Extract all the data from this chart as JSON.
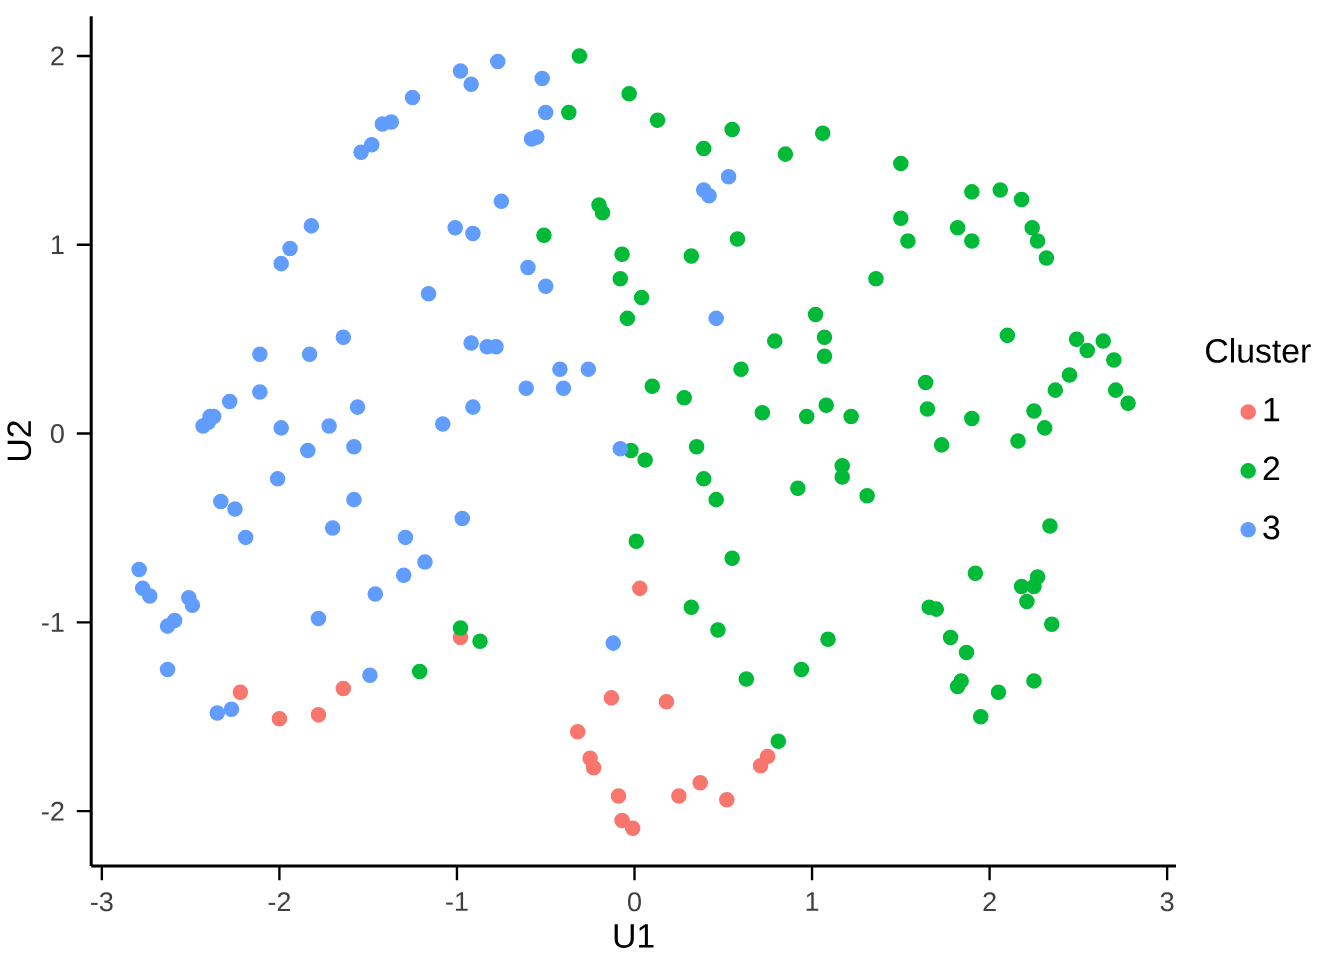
{
  "chart_data": {
    "type": "scatter",
    "xlabel": "U1",
    "ylabel": "U2",
    "legend_title": "Cluster",
    "legend": "right",
    "grid": false,
    "marker": "circle",
    "xlim": [
      -3.06,
      3.05
    ],
    "ylim": [
      -2.29,
      2.21
    ],
    "xticks": [
      -3,
      -2,
      -1,
      0,
      1,
      2,
      3
    ],
    "yticks": [
      -2,
      -1,
      0,
      1,
      2
    ],
    "series": [
      {
        "name": "1",
        "color": "#f8766d",
        "x": [
          0.03,
          -0.98,
          -2.22,
          -2.0,
          -1.78,
          -1.64,
          -0.13,
          0.18,
          -0.32,
          -0.25,
          -0.23,
          -0.09,
          -0.07,
          -0.01,
          0.25,
          0.37,
          0.52,
          0.71,
          0.75
        ],
        "values": [
          -0.82,
          -1.08,
          -1.37,
          -1.51,
          -1.49,
          -1.35,
          -1.4,
          -1.42,
          -1.58,
          -1.72,
          -1.77,
          -1.92,
          -2.05,
          -2.09,
          -1.92,
          -1.85,
          -1.94,
          -1.76,
          -1.71
        ]
      },
      {
        "name": "2",
        "color": "#00ba38",
        "x": [
          -0.31,
          -0.37,
          -0.03,
          0.13,
          0.39,
          0.55,
          0.85,
          1.06,
          1.5,
          -0.2,
          -0.18,
          -0.51,
          -0.07,
          0.32,
          0.58,
          -0.08,
          0.04,
          -0.04,
          1.5,
          1.54,
          1.9,
          2.06,
          1.82,
          1.9,
          2.18,
          2.24,
          2.27,
          2.32,
          1.36,
          1.02,
          1.07,
          1.07,
          0.79,
          0.6,
          0.1,
          0.28,
          0.72,
          0.97,
          1.08,
          1.22,
          2.1,
          1.64,
          1.65,
          1.9,
          2.49,
          2.55,
          2.64,
          2.7,
          2.45,
          2.37,
          2.71,
          2.78,
          2.25,
          2.31,
          2.16,
          1.73,
          -0.02,
          0.06,
          0.35,
          0.39,
          0.46,
          0.92,
          1.17,
          1.17,
          1.31,
          0.01,
          0.55,
          2.34,
          1.92,
          2.18,
          2.25,
          2.27,
          2.21,
          1.66,
          1.7,
          2.35,
          0.32,
          0.47,
          1.09,
          1.78,
          1.87,
          -0.98,
          -0.87,
          -1.21,
          0.63,
          0.94,
          1.84,
          1.82,
          2.05,
          2.25,
          1.95,
          0.81
        ],
        "values": [
          2.0,
          1.7,
          1.8,
          1.66,
          1.51,
          1.61,
          1.48,
          1.59,
          1.43,
          1.21,
          1.17,
          1.05,
          0.95,
          0.94,
          1.03,
          0.82,
          0.72,
          0.61,
          1.14,
          1.02,
          1.28,
          1.29,
          1.09,
          1.02,
          1.24,
          1.09,
          1.02,
          0.93,
          0.82,
          0.63,
          0.51,
          0.41,
          0.49,
          0.34,
          0.25,
          0.19,
          0.11,
          0.09,
          0.15,
          0.09,
          0.52,
          0.27,
          0.13,
          0.08,
          0.5,
          0.44,
          0.49,
          0.39,
          0.31,
          0.23,
          0.23,
          0.16,
          0.12,
          0.03,
          -0.04,
          -0.06,
          -0.09,
          -0.14,
          -0.07,
          -0.24,
          -0.35,
          -0.29,
          -0.17,
          -0.23,
          -0.33,
          -0.57,
          -0.66,
          -0.49,
          -0.74,
          -0.81,
          -0.81,
          -0.76,
          -0.89,
          -0.92,
          -0.93,
          -1.01,
          -0.92,
          -1.04,
          -1.09,
          -1.08,
          -1.16,
          -1.03,
          -1.1,
          -1.26,
          -1.3,
          -1.25,
          -1.31,
          -1.34,
          -1.37,
          -1.31,
          -1.5,
          -1.63
        ]
      },
      {
        "name": "3",
        "color": "#619cff",
        "x": [
          -0.77,
          -0.98,
          -0.92,
          -0.52,
          -0.5,
          -0.55,
          -0.58,
          -1.25,
          -1.37,
          -1.42,
          -1.48,
          -1.54,
          0.53,
          0.39,
          0.42,
          -0.75,
          -1.01,
          -0.91,
          -1.82,
          -1.94,
          -1.99,
          -0.6,
          -0.5,
          -1.16,
          0.46,
          -1.64,
          -0.92,
          -0.83,
          -0.78,
          -2.11,
          -1.83,
          -0.42,
          -0.26,
          -0.4,
          -0.61,
          -2.11,
          -2.28,
          -1.56,
          -0.91,
          -2.37,
          -2.39,
          -2.4,
          -2.43,
          -1.72,
          -1.08,
          -1.99,
          -0.08,
          -1.84,
          -1.58,
          -2.01,
          -1.58,
          -2.33,
          -2.25,
          -0.97,
          -1.7,
          -2.19,
          -1.29,
          -1.18,
          -1.3,
          -2.79,
          -2.77,
          -2.73,
          -2.51,
          -2.49,
          -1.46,
          -2.59,
          -2.63,
          -1.78,
          -0.12,
          -2.63,
          -1.49,
          -2.27,
          -2.35
        ],
        "values": [
          1.97,
          1.92,
          1.85,
          1.88,
          1.7,
          1.57,
          1.56,
          1.78,
          1.65,
          1.64,
          1.53,
          1.49,
          1.36,
          1.29,
          1.26,
          1.23,
          1.09,
          1.06,
          1.1,
          0.98,
          0.9,
          0.88,
          0.78,
          0.74,
          0.61,
          0.51,
          0.48,
          0.46,
          0.46,
          0.42,
          0.42,
          0.34,
          0.34,
          0.24,
          0.24,
          0.22,
          0.17,
          0.14,
          0.14,
          0.09,
          0.09,
          0.06,
          0.04,
          0.04,
          0.05,
          0.03,
          -0.08,
          -0.09,
          -0.07,
          -0.24,
          -0.35,
          -0.36,
          -0.4,
          -0.45,
          -0.5,
          -0.55,
          -0.55,
          -0.68,
          -0.75,
          -0.72,
          -0.82,
          -0.86,
          -0.87,
          -0.91,
          -0.85,
          -0.99,
          -1.02,
          -0.98,
          -1.11,
          -1.25,
          -1.28,
          -1.46,
          -1.48
        ]
      }
    ]
  }
}
